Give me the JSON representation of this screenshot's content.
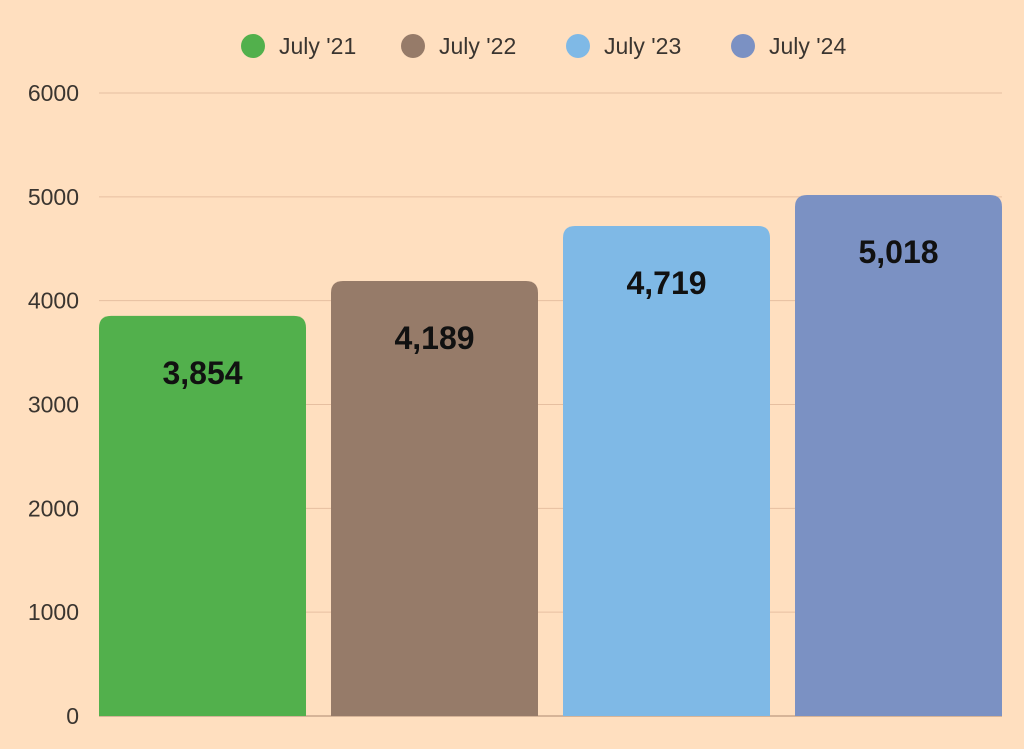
{
  "colors": {
    "background": "#FFDFBF",
    "gridline": "#E6BFA0",
    "axis_line": "#C9A68B"
  },
  "chart_data": {
    "type": "bar",
    "title": "",
    "xlabel": "",
    "ylabel": "",
    "categories": [
      "July '21",
      "July '22",
      "July '23",
      "July '24"
    ],
    "values": [
      3854,
      4189,
      4719,
      5018
    ],
    "value_labels": [
      "3,854",
      "4,189",
      "4,719",
      "5,018"
    ],
    "colors": [
      "#52B04C",
      "#967B69",
      "#7FB9E6",
      "#7B91C3"
    ],
    "ylim": [
      0,
      6000
    ],
    "yticks": [
      0,
      1000,
      2000,
      3000,
      4000,
      5000,
      6000
    ],
    "ytick_labels": [
      "0",
      "1000",
      "2000",
      "3000",
      "4000",
      "5000",
      "6000"
    ],
    "grid": true,
    "legend": {
      "position": "top-center",
      "marker": "circle"
    }
  }
}
